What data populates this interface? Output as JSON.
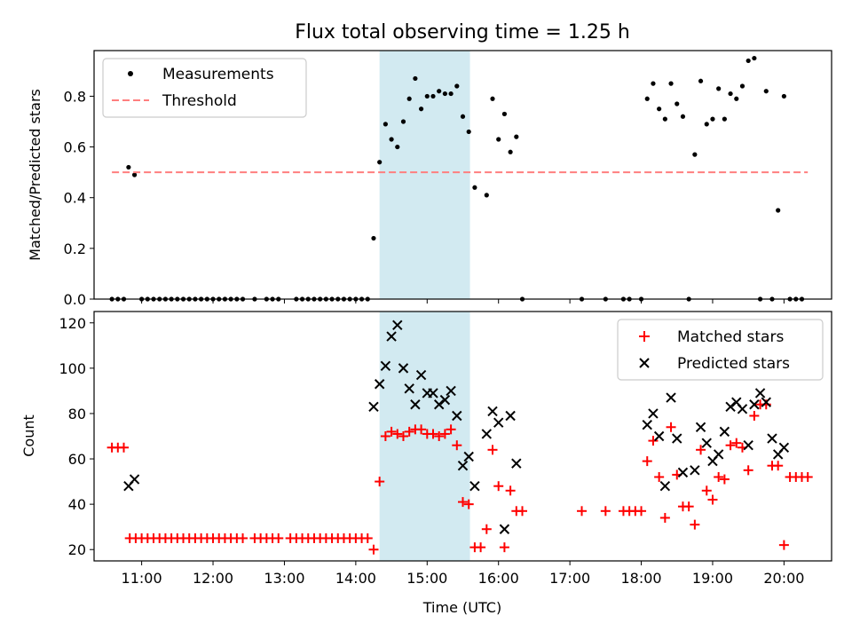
{
  "chart_data": [
    {
      "type": "scatter",
      "title": "Flux total observing time = 1.25 h",
      "xlabel": "",
      "ylabel": "Matched/Predicted stars",
      "xlim": [
        "10:20",
        "20:40"
      ],
      "ylim": [
        0,
        0.98
      ],
      "yticks": [
        0.0,
        0.2,
        0.4,
        0.6,
        0.8
      ],
      "ytick_labels": [
        "0.0",
        "0.2",
        "0.4",
        "0.6",
        "0.8"
      ],
      "grid": false,
      "legend": {
        "placement": "top-left",
        "entries": [
          "Measurements",
          "Threshold"
        ]
      },
      "shaded_interval": {
        "start": "14:20",
        "end": "15:36",
        "color": "#add8e6"
      },
      "threshold": {
        "name": "Threshold",
        "y": 0.5,
        "x_start": "10:35",
        "x_end": "20:20",
        "color": "#ff7f7f"
      },
      "series": [
        {
          "name": "Measurements",
          "color": "#000000",
          "marker": "dot",
          "points": [
            [
              "10:35",
              0
            ],
            [
              "10:40",
              0
            ],
            [
              "10:45",
              0
            ],
            [
              "10:49",
              0.52
            ],
            [
              "10:54",
              0.49
            ],
            [
              "11:00",
              0
            ],
            [
              "11:05",
              0
            ],
            [
              "11:10",
              0
            ],
            [
              "11:15",
              0
            ],
            [
              "11:20",
              0
            ],
            [
              "11:25",
              0
            ],
            [
              "11:30",
              0
            ],
            [
              "11:35",
              0
            ],
            [
              "11:40",
              0
            ],
            [
              "11:45",
              0
            ],
            [
              "11:50",
              0
            ],
            [
              "11:55",
              0
            ],
            [
              "12:00",
              0
            ],
            [
              "12:05",
              0
            ],
            [
              "12:10",
              0
            ],
            [
              "12:15",
              0
            ],
            [
              "12:20",
              0
            ],
            [
              "12:25",
              0
            ],
            [
              "12:35",
              0
            ],
            [
              "12:45",
              0
            ],
            [
              "12:50",
              0
            ],
            [
              "12:55",
              0
            ],
            [
              "13:10",
              0
            ],
            [
              "13:15",
              0
            ],
            [
              "13:20",
              0
            ],
            [
              "13:25",
              0
            ],
            [
              "13:30",
              0
            ],
            [
              "13:35",
              0
            ],
            [
              "13:40",
              0
            ],
            [
              "13:45",
              0
            ],
            [
              "13:50",
              0
            ],
            [
              "13:55",
              0
            ],
            [
              "14:00",
              0
            ],
            [
              "14:05",
              0
            ],
            [
              "14:10",
              0
            ],
            [
              "14:15",
              0.24
            ],
            [
              "14:20",
              0.54
            ],
            [
              "14:25",
              0.69
            ],
            [
              "14:30",
              0.63
            ],
            [
              "14:35",
              0.6
            ],
            [
              "14:40",
              0.7
            ],
            [
              "14:45",
              0.79
            ],
            [
              "14:50",
              0.87
            ],
            [
              "14:55",
              0.75
            ],
            [
              "15:00",
              0.8
            ],
            [
              "15:05",
              0.8
            ],
            [
              "15:10",
              0.82
            ],
            [
              "15:15",
              0.81
            ],
            [
              "15:20",
              0.81
            ],
            [
              "15:25",
              0.84
            ],
            [
              "15:30",
              0.72
            ],
            [
              "15:35",
              0.66
            ],
            [
              "15:40",
              0.44
            ],
            [
              "15:50",
              0.41
            ],
            [
              "15:55",
              0.79
            ],
            [
              "16:00",
              0.63
            ],
            [
              "16:05",
              0.73
            ],
            [
              "16:10",
              0.58
            ],
            [
              "16:15",
              0.64
            ],
            [
              "16:20",
              0
            ],
            [
              "17:10",
              0
            ],
            [
              "17:30",
              0
            ],
            [
              "17:45",
              0
            ],
            [
              "17:50",
              0
            ],
            [
              "18:00",
              0
            ],
            [
              "18:05",
              0.79
            ],
            [
              "18:10",
              0.85
            ],
            [
              "18:15",
              0.75
            ],
            [
              "18:20",
              0.71
            ],
            [
              "18:25",
              0.85
            ],
            [
              "18:30",
              0.77
            ],
            [
              "18:35",
              0.72
            ],
            [
              "18:40",
              0
            ],
            [
              "18:45",
              0.57
            ],
            [
              "18:50",
              0.86
            ],
            [
              "18:55",
              0.69
            ],
            [
              "19:00",
              0.71
            ],
            [
              "19:05",
              0.83
            ],
            [
              "19:10",
              0.71
            ],
            [
              "19:15",
              0.81
            ],
            [
              "19:20",
              0.79
            ],
            [
              "19:25",
              0.84
            ],
            [
              "19:30",
              0.94
            ],
            [
              "19:35",
              0.95
            ],
            [
              "19:40",
              0
            ],
            [
              "19:45",
              0.82
            ],
            [
              "19:50",
              0
            ],
            [
              "19:55",
              0.35
            ],
            [
              "20:00",
              0.8
            ],
            [
              "20:05",
              0
            ],
            [
              "20:10",
              0
            ],
            [
              "20:15",
              0
            ]
          ]
        }
      ]
    },
    {
      "type": "scatter",
      "title": "",
      "xlabel": "Time (UTC)",
      "ylabel": "Count",
      "xlim": [
        "10:20",
        "20:40"
      ],
      "ylim": [
        15,
        125
      ],
      "xticks": [
        "11:00",
        "12:00",
        "13:00",
        "14:00",
        "15:00",
        "16:00",
        "17:00",
        "18:00",
        "19:00",
        "20:00"
      ],
      "yticks": [
        20,
        40,
        60,
        80,
        100,
        120
      ],
      "ytick_labels": [
        "20",
        "40",
        "60",
        "80",
        "100",
        "120"
      ],
      "grid": false,
      "legend": {
        "placement": "top-right",
        "entries": [
          "Matched stars",
          "Predicted stars"
        ]
      },
      "shaded_interval": {
        "start": "14:20",
        "end": "15:36",
        "color": "#add8e6"
      },
      "series": [
        {
          "name": "Matched stars",
          "color": "#ff0000",
          "marker": "plus",
          "points": [
            [
              "10:35",
              65
            ],
            [
              "10:40",
              65
            ],
            [
              "10:45",
              65
            ],
            [
              "10:50",
              25
            ],
            [
              "10:55",
              25
            ],
            [
              "11:00",
              25
            ],
            [
              "11:05",
              25
            ],
            [
              "11:10",
              25
            ],
            [
              "11:15",
              25
            ],
            [
              "11:20",
              25
            ],
            [
              "11:25",
              25
            ],
            [
              "11:30",
              25
            ],
            [
              "11:35",
              25
            ],
            [
              "11:40",
              25
            ],
            [
              "11:45",
              25
            ],
            [
              "11:50",
              25
            ],
            [
              "11:55",
              25
            ],
            [
              "12:00",
              25
            ],
            [
              "12:05",
              25
            ],
            [
              "12:10",
              25
            ],
            [
              "12:15",
              25
            ],
            [
              "12:20",
              25
            ],
            [
              "12:25",
              25
            ],
            [
              "12:35",
              25
            ],
            [
              "12:40",
              25
            ],
            [
              "12:45",
              25
            ],
            [
              "12:50",
              25
            ],
            [
              "12:55",
              25
            ],
            [
              "13:05",
              25
            ],
            [
              "13:10",
              25
            ],
            [
              "13:15",
              25
            ],
            [
              "13:20",
              25
            ],
            [
              "13:25",
              25
            ],
            [
              "13:30",
              25
            ],
            [
              "13:35",
              25
            ],
            [
              "13:40",
              25
            ],
            [
              "13:45",
              25
            ],
            [
              "13:50",
              25
            ],
            [
              "13:55",
              25
            ],
            [
              "14:00",
              25
            ],
            [
              "14:05",
              25
            ],
            [
              "14:10",
              25
            ],
            [
              "14:15",
              20
            ],
            [
              "14:20",
              50
            ],
            [
              "14:25",
              70
            ],
            [
              "14:30",
              72
            ],
            [
              "14:35",
              71
            ],
            [
              "14:40",
              70
            ],
            [
              "14:45",
              72
            ],
            [
              "14:50",
              73
            ],
            [
              "14:55",
              73
            ],
            [
              "15:00",
              71
            ],
            [
              "15:05",
              71
            ],
            [
              "15:10",
              70
            ],
            [
              "15:15",
              71
            ],
            [
              "15:20",
              73
            ],
            [
              "15:25",
              66
            ],
            [
              "15:30",
              41
            ],
            [
              "15:35",
              40
            ],
            [
              "15:40",
              21
            ],
            [
              "15:45",
              21
            ],
            [
              "15:50",
              29
            ],
            [
              "15:55",
              64
            ],
            [
              "16:00",
              48
            ],
            [
              "16:05",
              21
            ],
            [
              "16:10",
              46
            ],
            [
              "16:15",
              37
            ],
            [
              "16:20",
              37
            ],
            [
              "17:10",
              37
            ],
            [
              "17:30",
              37
            ],
            [
              "17:45",
              37
            ],
            [
              "17:50",
              37
            ],
            [
              "17:55",
              37
            ],
            [
              "18:00",
              37
            ],
            [
              "18:05",
              59
            ],
            [
              "18:10",
              68
            ],
            [
              "18:15",
              52
            ],
            [
              "18:20",
              34
            ],
            [
              "18:25",
              74
            ],
            [
              "18:30",
              53
            ],
            [
              "18:35",
              39
            ],
            [
              "18:40",
              39
            ],
            [
              "18:45",
              31
            ],
            [
              "18:50",
              64
            ],
            [
              "18:55",
              46
            ],
            [
              "19:00",
              42
            ],
            [
              "19:05",
              52
            ],
            [
              "19:10",
              51
            ],
            [
              "19:15",
              66
            ],
            [
              "19:20",
              67
            ],
            [
              "19:25",
              65
            ],
            [
              "19:30",
              55
            ],
            [
              "19:35",
              79
            ],
            [
              "19:40",
              84
            ],
            [
              "19:45",
              84
            ],
            [
              "19:50",
              57
            ],
            [
              "19:55",
              57
            ],
            [
              "20:00",
              22
            ],
            [
              "20:05",
              52
            ],
            [
              "20:10",
              52
            ],
            [
              "20:15",
              52
            ],
            [
              "20:20",
              52
            ]
          ]
        },
        {
          "name": "Predicted stars",
          "color": "#000000",
          "marker": "x",
          "points": [
            [
              "10:49",
              48
            ],
            [
              "10:54",
              51
            ],
            [
              "14:15",
              83
            ],
            [
              "14:20",
              93
            ],
            [
              "14:25",
              101
            ],
            [
              "14:30",
              114
            ],
            [
              "14:35",
              119
            ],
            [
              "14:40",
              100
            ],
            [
              "14:45",
              91
            ],
            [
              "14:50",
              84
            ],
            [
              "14:55",
              97
            ],
            [
              "15:00",
              89
            ],
            [
              "15:05",
              89
            ],
            [
              "15:10",
              84
            ],
            [
              "15:15",
              86
            ],
            [
              "15:20",
              90
            ],
            [
              "15:25",
              79
            ],
            [
              "15:30",
              57
            ],
            [
              "15:35",
              61
            ],
            [
              "15:40",
              48
            ],
            [
              "15:50",
              71
            ],
            [
              "15:55",
              81
            ],
            [
              "16:00",
              76
            ],
            [
              "16:05",
              29
            ],
            [
              "16:10",
              79
            ],
            [
              "16:15",
              58
            ],
            [
              "18:05",
              75
            ],
            [
              "18:10",
              80
            ],
            [
              "18:15",
              70
            ],
            [
              "18:20",
              48
            ],
            [
              "18:25",
              87
            ],
            [
              "18:30",
              69
            ],
            [
              "18:35",
              54
            ],
            [
              "18:45",
              55
            ],
            [
              "18:50",
              74
            ],
            [
              "18:55",
              67
            ],
            [
              "19:00",
              59
            ],
            [
              "19:05",
              62
            ],
            [
              "19:10",
              72
            ],
            [
              "19:15",
              83
            ],
            [
              "19:20",
              85
            ],
            [
              "19:25",
              82
            ],
            [
              "19:30",
              66
            ],
            [
              "19:35",
              84
            ],
            [
              "19:40",
              89
            ],
            [
              "19:45",
              85
            ],
            [
              "19:50",
              69
            ],
            [
              "19:55",
              62
            ],
            [
              "20:00",
              65
            ]
          ]
        }
      ]
    }
  ]
}
